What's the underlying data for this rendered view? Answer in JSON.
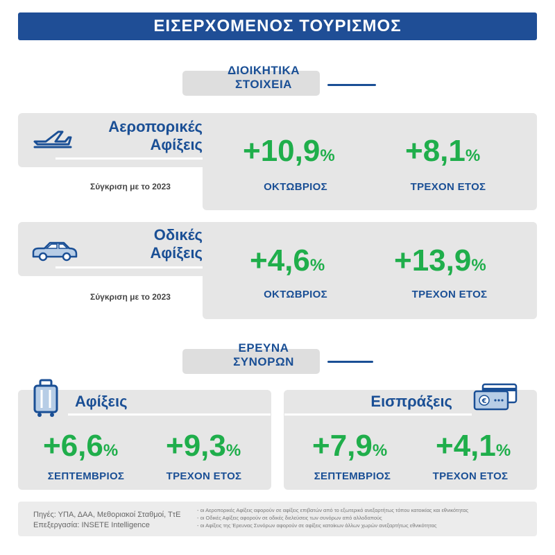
{
  "header": {
    "title": "ΕΙΣΕΡΧΟΜΕΝΟΣ ΤΟΥΡΙΣΜΟΣ"
  },
  "sections": {
    "administrative": {
      "line1": "ΔΙΟΙΚΗΤΙΚΑ",
      "line2": "ΣΤΟΙΧΕΙΑ"
    },
    "border_survey": {
      "line1": "ΕΡΕΥΝΑ",
      "line2": "ΣΥΝΟΡΩΝ"
    }
  },
  "air": {
    "title_line1": "Αεροπορικές",
    "title_line2": "Αφίξεις",
    "icon": "airplane-icon",
    "comparison": "Σύγκριση με το 2023",
    "month_value": "+10,9",
    "month_label": "ΟΚΤΩΒΡΙΟΣ",
    "ytd_value": "+8,1",
    "ytd_label": "ΤΡΕΧΟΝ ΕΤΟΣ",
    "unit": "%"
  },
  "road": {
    "title_line1": "Οδικές",
    "title_line2": "Αφίξεις",
    "icon": "car-icon",
    "comparison": "Σύγκριση με το 2023",
    "month_value": "+4,6",
    "month_label": "ΟΚΤΩΒΡΙΟΣ",
    "ytd_value": "+13,9",
    "ytd_label": "ΤΡΕΧΟΝ ΕΤΟΣ",
    "unit": "%"
  },
  "arrivals": {
    "title": "Αφίξεις",
    "icon": "suitcase-icon",
    "month_value": "+6,6",
    "month_label": "ΣΕΠΤΕΜΒΡΙΟΣ",
    "ytd_value": "+9,3",
    "ytd_label": "ΤΡΕΧΟΝ ΕΤΟΣ",
    "unit": "%"
  },
  "receipts": {
    "title": "Εισπράξεις",
    "icon": "credit-card-icon",
    "month_value": "+7,9",
    "month_label": "ΣΕΠΤΕΜΒΡΙΟΣ",
    "ytd_value": "+4,1",
    "ytd_label": "ΤΡΕΧΟΝ ΕΤΟΣ",
    "unit": "%"
  },
  "footer": {
    "sources": "Πηγές: ΥΠΑ, ΔΑΑ, Μεθοριακοί Σταθμοί, ΤτΕ",
    "processing": "Επεξεργασία: INSETE Intelligence",
    "notes": [
      "- οι Αεροπορικές Αφίξεις αφορούν σε αφίξεις επιβατών από το εξωτερικό ανεξαρτήτως τόπου κατοικίας και εθνικότητας",
      "- οι Οδικές Αφίξεις αφορούν σε οδικές διελεύσεις των συνόρων από αλλοδαπούς",
      "- οι Αφίξεις της Έρευνας Συνόρων αφορούν σε αφίξεις κατοίκων άλλων χωρών ανεξαρτήτως εθνικότητας"
    ]
  },
  "colors": {
    "navy": "#1a4f95",
    "green": "#1fae4b",
    "banner": "#1f4e96",
    "card": "#e6e6e6"
  }
}
